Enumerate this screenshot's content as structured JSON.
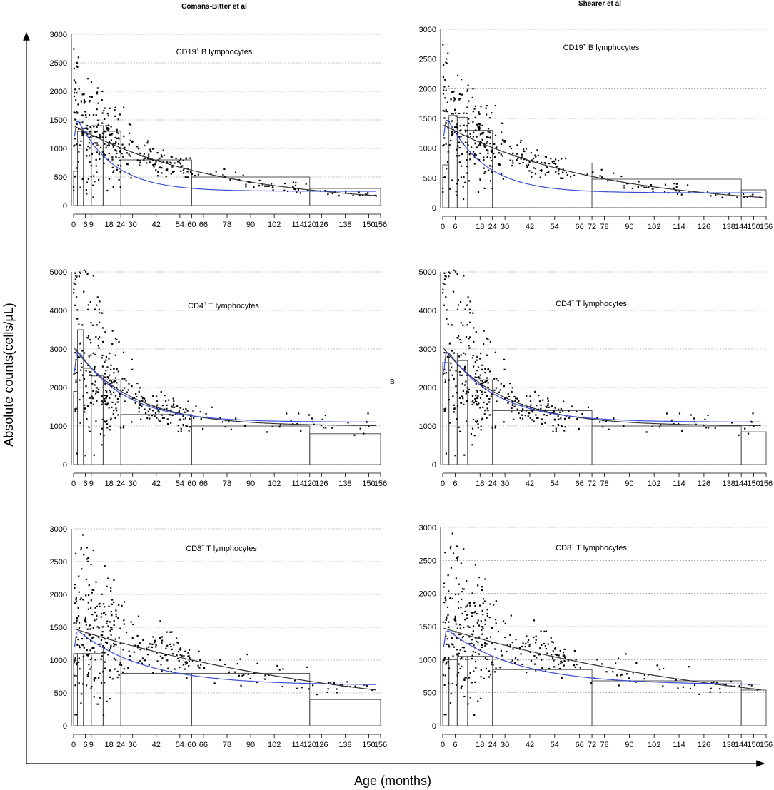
{
  "figure": {
    "x_axis_label": "Age (months)",
    "y_axis_label": "Absolute counts(cells/µL)",
    "stray_mark": "B",
    "colors": {
      "points": "#000000",
      "box": "#444444",
      "grid": "#888888",
      "blue_curve": "#3a4fd8",
      "black_curve": "#333333"
    }
  },
  "columns": [
    {
      "title": "Comans-Bitter et al"
    },
    {
      "title": "Shearer et al"
    }
  ],
  "chart_data": [
    {
      "type": "scatter",
      "panel": "Comans-Bitter et al / CD19+ B lymphocytes",
      "label_main": "CD19",
      "label_sup": "+",
      "label_rest": " B lymphocytes",
      "xlim": [
        0,
        156
      ],
      "ylim": [
        0,
        3000
      ],
      "yticks": [
        0,
        500,
        1000,
        1500,
        2000,
        2500,
        3000
      ],
      "xticks": [
        0,
        6,
        9,
        18,
        24,
        30,
        42,
        54,
        60,
        66,
        78,
        90,
        102,
        114,
        120,
        126,
        138,
        150,
        156
      ],
      "xtick_labels": [
        "0",
        "6",
        "9",
        "18",
        "24",
        "30",
        "42",
        "54",
        "60",
        "66",
        "78",
        "90",
        "102",
        "114",
        "120",
        "126",
        "138",
        "150",
        "156"
      ],
      "boxes": [
        {
          "x0": 0,
          "x1": 2,
          "value": 600
        },
        {
          "x0": 2,
          "x1": 5,
          "value": 1300
        },
        {
          "x0": 5,
          "x1": 9,
          "value": 1300
        },
        {
          "x0": 9,
          "x1": 15,
          "value": 1400
        },
        {
          "x0": 15,
          "x1": 24,
          "value": 1300
        },
        {
          "x0": 24,
          "x1": 60,
          "value": 800
        },
        {
          "x0": 60,
          "x1": 120,
          "value": 500
        },
        {
          "x0": 120,
          "x1": 156,
          "value": 300
        }
      ],
      "curve_blue": {
        "a": 1420,
        "b": 1820,
        "k": 0.055,
        "c": 250,
        "r": 0.7
      },
      "curve_black": {
        "a": 1400,
        "k": 0.0136,
        "r": 0.7
      },
      "n_points": 380,
      "seed": 11
    },
    {
      "type": "scatter",
      "panel": "Shearer et al / CD19+ B lymphocytes",
      "label_main": "CD19",
      "label_sup": "+",
      "label_rest": " B lymphocytes",
      "xlim": [
        0,
        156
      ],
      "ylim": [
        0,
        3000
      ],
      "yticks": [
        0,
        500,
        1000,
        1500,
        2000,
        2500,
        3000
      ],
      "xticks": [
        0,
        6,
        18,
        24,
        30,
        42,
        54,
        66,
        72,
        78,
        90,
        102,
        114,
        126,
        138,
        144,
        150,
        156
      ],
      "xtick_labels": [
        "0",
        "6",
        "18",
        "24",
        "30",
        "42",
        "54",
        "66",
        "72",
        "78",
        "90",
        "102",
        "114",
        "126",
        "138",
        "144",
        "150",
        "156"
      ],
      "boxes": [
        {
          "x0": 0,
          "x1": 3,
          "value": 720
        },
        {
          "x0": 3,
          "x1": 7,
          "value": 1550
        },
        {
          "x0": 7,
          "x1": 12,
          "value": 1520
        },
        {
          "x0": 12,
          "x1": 24,
          "value": 1300
        },
        {
          "x0": 24,
          "x1": 72,
          "value": 750
        },
        {
          "x0": 72,
          "x1": 144,
          "value": 480
        },
        {
          "x0": 144,
          "x1": 156,
          "value": 300
        }
      ],
      "curve_blue": {
        "a": 1420,
        "b": 1820,
        "k": 0.055,
        "c": 250,
        "r": 0.7
      },
      "curve_black": {
        "a": 1400,
        "k": 0.0136,
        "r": 0.7
      },
      "n_points": 380,
      "seed": 11
    },
    {
      "type": "scatter",
      "panel": "Comans-Bitter et al / CD4+ T lymphocytes",
      "label_main": "CD4",
      "label_sup": "+",
      "label_rest": " T lymphocytes",
      "xlim": [
        0,
        156
      ],
      "ylim": [
        0,
        5000
      ],
      "yticks": [
        0,
        1000,
        2000,
        3000,
        4000,
        5000
      ],
      "xticks": [
        0,
        6,
        9,
        18,
        24,
        30,
        42,
        54,
        60,
        66,
        78,
        90,
        102,
        114,
        120,
        126,
        138,
        150,
        156
      ],
      "xtick_labels": [
        "0",
        "6",
        "9",
        "18",
        "24",
        "30",
        "42",
        "54",
        "60",
        "66",
        "78",
        "90",
        "102",
        "114",
        "120",
        "126",
        "138",
        "150",
        "156"
      ],
      "boxes": [
        {
          "x0": 0,
          "x1": 2,
          "value": 1900
        },
        {
          "x0": 2,
          "x1": 5,
          "value": 3500
        },
        {
          "x0": 5,
          "x1": 9,
          "value": 2500
        },
        {
          "x0": 9,
          "x1": 15,
          "value": 2300
        },
        {
          "x0": 15,
          "x1": 24,
          "value": 2200
        },
        {
          "x0": 24,
          "x1": 60,
          "value": 1300
        },
        {
          "x0": 60,
          "x1": 120,
          "value": 1000
        },
        {
          "x0": 120,
          "x1": 156,
          "value": 800
        }
      ],
      "curve_blue": {
        "a": 2050,
        "b": 3000,
        "k": 0.042,
        "c": 1100,
        "r": 0.7
      },
      "curve_black": {
        "a": 2050,
        "k": 0.034,
        "c": 1000,
        "r": 0.7
      },
      "n_points": 380,
      "seed": 23
    },
    {
      "type": "scatter",
      "panel": "Shearer et al / CD4+ T lymphocytes",
      "label_main": "CD4",
      "label_sup": "+",
      "label_rest": " T lymphocytes",
      "xlim": [
        0,
        156
      ],
      "ylim": [
        0,
        5000
      ],
      "yticks": [
        0,
        1000,
        2000,
        3000,
        4000,
        5000
      ],
      "xticks": [
        0,
        6,
        18,
        24,
        30,
        42,
        54,
        66,
        72,
        78,
        90,
        102,
        114,
        126,
        138,
        144,
        150,
        156
      ],
      "xtick_labels": [
        "0",
        "6",
        "18",
        "24",
        "30",
        "42",
        "54",
        "66",
        "72",
        "78",
        "90",
        "102",
        "114",
        "126",
        "138",
        "144",
        "150",
        "156"
      ],
      "boxes": [
        {
          "x0": 0,
          "x1": 3,
          "value": 2650
        },
        {
          "x0": 3,
          "x1": 7,
          "value": 2900
        },
        {
          "x0": 7,
          "x1": 12,
          "value": 2700
        },
        {
          "x0": 12,
          "x1": 24,
          "value": 2200
        },
        {
          "x0": 24,
          "x1": 72,
          "value": 1400
        },
        {
          "x0": 72,
          "x1": 144,
          "value": 1000
        },
        {
          "x0": 144,
          "x1": 156,
          "value": 850
        }
      ],
      "curve_blue": {
        "a": 2050,
        "b": 3000,
        "k": 0.042,
        "c": 1100,
        "r": 0.7
      },
      "curve_black": {
        "a": 2050,
        "k": 0.034,
        "c": 1000,
        "r": 0.7
      },
      "n_points": 380,
      "seed": 23
    },
    {
      "type": "scatter",
      "panel": "Comans-Bitter et al / CD8+ T lymphocytes",
      "label_main": "CD8",
      "label_sup": "+",
      "label_rest": " T lymphocytes",
      "xlim": [
        0,
        156
      ],
      "ylim": [
        0,
        3000
      ],
      "yticks": [
        0,
        500,
        1000,
        1500,
        2000,
        2500,
        3000
      ],
      "xticks": [
        0,
        6,
        9,
        18,
        24,
        30,
        42,
        54,
        60,
        66,
        78,
        90,
        102,
        114,
        120,
        126,
        138,
        150,
        156
      ],
      "xtick_labels": [
        "0",
        "6",
        "9",
        "18",
        "24",
        "30",
        "42",
        "54",
        "60",
        "66",
        "78",
        "90",
        "102",
        "114",
        "120",
        "126",
        "138",
        "150",
        "156"
      ],
      "boxes": [
        {
          "x0": 0,
          "x1": 2,
          "value": 1100
        },
        {
          "x0": 2,
          "x1": 5,
          "value": 1100
        },
        {
          "x0": 5,
          "x1": 9,
          "value": 1100
        },
        {
          "x0": 9,
          "x1": 15,
          "value": 1100
        },
        {
          "x0": 15,
          "x1": 24,
          "value": 1200
        },
        {
          "x0": 24,
          "x1": 60,
          "value": 800
        },
        {
          "x0": 60,
          "x1": 120,
          "value": 800
        },
        {
          "x0": 120,
          "x1": 156,
          "value": 400
        }
      ],
      "curve_blue": {
        "a": 890,
        "b": 1450,
        "k": 0.03,
        "c": 620,
        "r": 0.8
      },
      "curve_black": {
        "a": 1480,
        "k": 0.0065,
        "r": 0.8
      },
      "n_points": 380,
      "seed": 37
    },
    {
      "type": "scatter",
      "panel": "Shearer et al / CD8+ T lymphocytes",
      "label_main": "CD8",
      "label_sup": "+",
      "label_rest": " T lymphocytes",
      "xlim": [
        0,
        156
      ],
      "ylim": [
        0,
        3000
      ],
      "yticks": [
        0,
        500,
        1000,
        1500,
        2000,
        2500,
        3000
      ],
      "xticks": [
        0,
        6,
        18,
        24,
        30,
        42,
        54,
        66,
        72,
        78,
        90,
        102,
        114,
        126,
        138,
        144,
        150,
        156
      ],
      "xtick_labels": [
        "0",
        "6",
        "18",
        "24",
        "30",
        "42",
        "54",
        "66",
        "72",
        "78",
        "90",
        "102",
        "114",
        "126",
        "138",
        "144",
        "150",
        "156"
      ],
      "boxes": [
        {
          "x0": 0,
          "x1": 3,
          "value": 1000
        },
        {
          "x0": 3,
          "x1": 7,
          "value": 1000
        },
        {
          "x0": 7,
          "x1": 12,
          "value": 1050
        },
        {
          "x0": 12,
          "x1": 24,
          "value": 1050
        },
        {
          "x0": 24,
          "x1": 72,
          "value": 850
        },
        {
          "x0": 72,
          "x1": 144,
          "value": 680
        },
        {
          "x0": 144,
          "x1": 156,
          "value": 540
        }
      ],
      "curve_blue": {
        "a": 890,
        "b": 1450,
        "k": 0.03,
        "c": 620,
        "r": 0.8
      },
      "curve_black": {
        "a": 1480,
        "k": 0.0065,
        "r": 0.8
      },
      "n_points": 380,
      "seed": 37
    }
  ]
}
